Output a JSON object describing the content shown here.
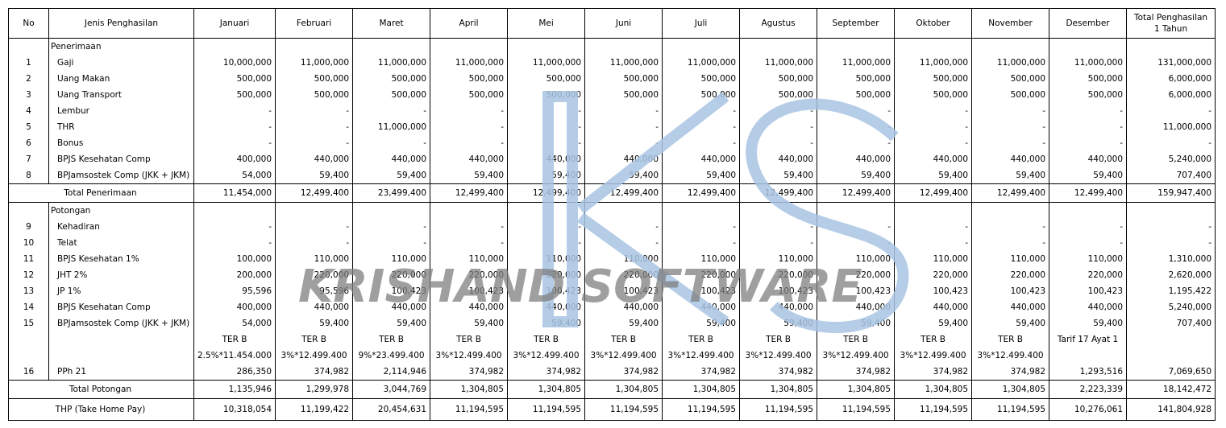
{
  "header": {
    "no": "No",
    "jenis": "Jenis Penghasilan",
    "months": [
      "Januari",
      "Februari",
      "Maret",
      "April",
      "Mei",
      "Juni",
      "Juli",
      "Agustus",
      "September",
      "Oktober",
      "November",
      "Desember"
    ],
    "total_line1": "Total Penghasilan",
    "total_line2": "1 Tahun"
  },
  "penerimaan": {
    "title": "Penerimaan",
    "rows": [
      {
        "no": "1",
        "name": "Gaji",
        "values": [
          "10,000,000",
          "11,000,000",
          "11,000,000",
          "11,000,000",
          "11,000,000",
          "11,000,000",
          "11,000,000",
          "11,000,000",
          "11,000,000",
          "11,000,000",
          "11,000,000",
          "11,000,000"
        ],
        "total": "131,000,000"
      },
      {
        "no": "2",
        "name": "Uang Makan",
        "values": [
          "500,000",
          "500,000",
          "500,000",
          "500,000",
          "500,000",
          "500,000",
          "500,000",
          "500,000",
          "500,000",
          "500,000",
          "500,000",
          "500,000"
        ],
        "total": "6,000,000"
      },
      {
        "no": "3",
        "name": "Uang Transport",
        "values": [
          "500,000",
          "500,000",
          "500,000",
          "500,000",
          "500,000",
          "500,000",
          "500,000",
          "500,000",
          "500,000",
          "500,000",
          "500,000",
          "500,000"
        ],
        "total": "6,000,000"
      },
      {
        "no": "4",
        "name": "Lembur",
        "values": [
          "-",
          "-",
          "-",
          "-",
          "-",
          "-",
          "-",
          "-",
          "-",
          "-",
          "-",
          "-"
        ],
        "total": "-"
      },
      {
        "no": "5",
        "name": "THR",
        "values": [
          "-",
          "-",
          "11,000,000",
          "-",
          "-",
          "-",
          "-",
          "-",
          "-",
          "-",
          "-",
          "-"
        ],
        "total": "11,000,000"
      },
      {
        "no": "6",
        "name": "Bonus",
        "values": [
          "-",
          "-",
          "-",
          "-",
          "-",
          "-",
          "-",
          "-",
          "-",
          "-",
          "-",
          "-"
        ],
        "total": "-"
      },
      {
        "no": "7",
        "name": "BPJS Kesehatan Comp",
        "values": [
          "400,000",
          "440,000",
          "440,000",
          "440,000",
          "440,000",
          "440,000",
          "440,000",
          "440,000",
          "440,000",
          "440,000",
          "440,000",
          "440,000"
        ],
        "total": "5,240,000"
      },
      {
        "no": "8",
        "name": "BPJamsostek Comp (JKK + JKM)",
        "values": [
          "54,000",
          "59,400",
          "59,400",
          "59,400",
          "59,400",
          "59,400",
          "59,400",
          "59,400",
          "59,400",
          "59,400",
          "59,400",
          "59,400"
        ],
        "total": "707,400"
      }
    ],
    "total": {
      "label": "Total Penerimaan",
      "values": [
        "11,454,000",
        "12,499,400",
        "23,499,400",
        "12,499,400",
        "12,499,400",
        "12,499,400",
        "12,499,400",
        "12,499,400",
        "12,499,400",
        "12,499,400",
        "12,499,400",
        "12,499,400"
      ],
      "total": "159,947,400"
    }
  },
  "potongan": {
    "title": "Potongan",
    "rows": [
      {
        "no": "9",
        "name": "Kehadiran",
        "values": [
          "-",
          "-",
          "-",
          "-",
          "-",
          "-",
          "-",
          "-",
          "-",
          "-",
          "-",
          "-"
        ],
        "total": "-"
      },
      {
        "no": "10",
        "name": "Telat",
        "values": [
          "-",
          "-",
          "-",
          "-",
          "-",
          "-",
          "-",
          "-",
          "-",
          "-",
          "-",
          "-"
        ],
        "total": "-"
      },
      {
        "no": "11",
        "name": "BPJS Kesehatan 1%",
        "values": [
          "100,000",
          "110,000",
          "110,000",
          "110,000",
          "110,000",
          "110,000",
          "110,000",
          "110,000",
          "110,000",
          "110,000",
          "110,000",
          "110,000"
        ],
        "total": "1,310,000"
      },
      {
        "no": "12",
        "name": "JHT 2%",
        "values": [
          "200,000",
          "220,000",
          "220,000",
          "220,000",
          "220,000",
          "220,000",
          "220,000",
          "220,000",
          "220,000",
          "220,000",
          "220,000",
          "220,000"
        ],
        "total": "2,620,000"
      },
      {
        "no": "13",
        "name": "JP 1%",
        "values": [
          "95,596",
          "95,596",
          "100,423",
          "100,423",
          "100,423",
          "100,423",
          "100,423",
          "100,423",
          "100,423",
          "100,423",
          "100,423",
          "100,423"
        ],
        "total": "1,195,422"
      },
      {
        "no": "14",
        "name": "BPJS Kesehatan Comp",
        "values": [
          "400,000",
          "440,000",
          "440,000",
          "440,000",
          "440,000",
          "440,000",
          "440,000",
          "440,000",
          "440,000",
          "440,000",
          "440,000",
          "440,000"
        ],
        "total": "5,240,000"
      },
      {
        "no": "15",
        "name": "BPJamsostek Comp (JKK + JKM)",
        "values": [
          "54,000",
          "59,400",
          "59,400",
          "59,400",
          "59,400",
          "59,400",
          "59,400",
          "59,400",
          "59,400",
          "59,400",
          "59,400",
          "59,400"
        ],
        "total": "707,400"
      }
    ],
    "ter_row": [
      "TER B",
      "TER B",
      "TER B",
      "TER B",
      "TER B",
      "TER B",
      "TER B",
      "TER B",
      "TER B",
      "TER B",
      "TER B",
      "Tarif 17 Ayat 1"
    ],
    "formula_row": [
      "2.5%*11.454.000",
      "3%*12.499.400",
      "9%*23.499.400",
      "3%*12.499.400",
      "3%*12.499.400",
      "3%*12.499.400",
      "3%*12.499.400",
      "3%*12.499.400",
      "3%*12.499.400",
      "3%*12.499.400",
      "3%*12.499.400",
      ""
    ],
    "pph": {
      "no": "16",
      "name": "PPh 21",
      "values": [
        "286,350",
        "374,982",
        "2,114,946",
        "374,982",
        "374,982",
        "374,982",
        "374,982",
        "374,982",
        "374,982",
        "374,982",
        "374,982",
        "1,293,516"
      ],
      "total": "7,069,650"
    },
    "total": {
      "label": "Total Potongan",
      "values": [
        "1,135,946",
        "1,299,978",
        "3,044,769",
        "1,304,805",
        "1,304,805",
        "1,304,805",
        "1,304,805",
        "1,304,805",
        "1,304,805",
        "1,304,805",
        "1,304,805",
        "2,223,339"
      ],
      "total": "18,142,472"
    }
  },
  "thp": {
    "label": "THP (Take Home Pay)",
    "values": [
      "10,318,054",
      "11,199,422",
      "20,454,631",
      "11,194,595",
      "11,194,595",
      "11,194,595",
      "11,194,595",
      "11,194,595",
      "11,194,595",
      "11,194,595",
      "11,194,595",
      "10,276,061"
    ],
    "total": "141,804,928"
  },
  "watermark": {
    "text": "KRISHAND SOFTWARE",
    "logo_color": "#a9c4e3",
    "text_color": "#7f7f7f"
  }
}
